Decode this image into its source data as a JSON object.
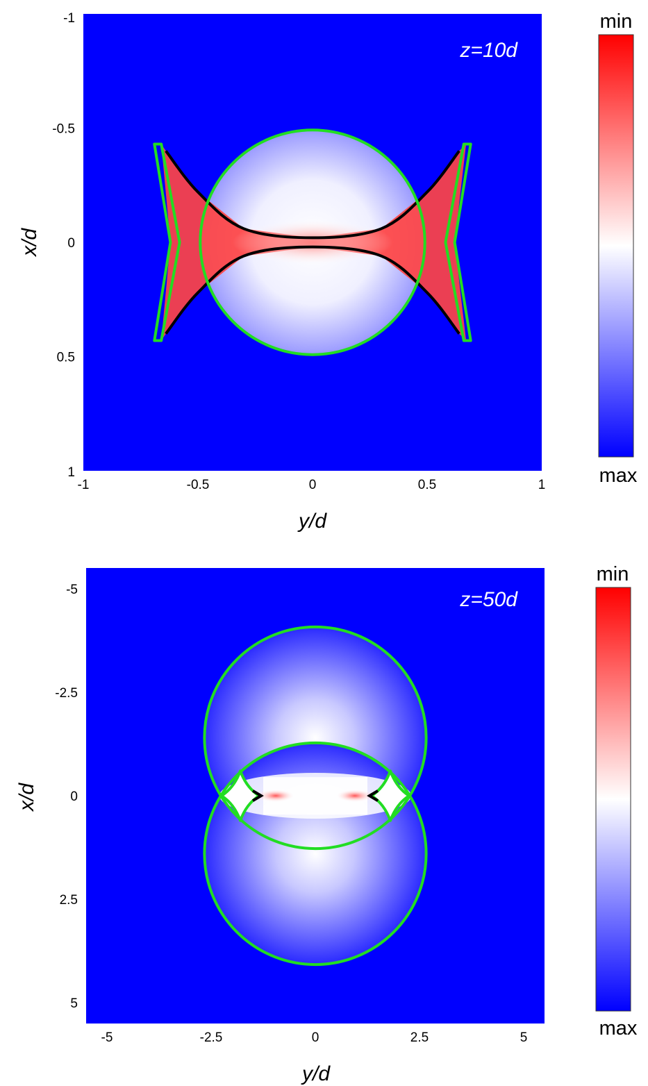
{
  "chart_data": [
    {
      "type": "heatmap",
      "annotation": "z=10d",
      "xlabel": "y/d",
      "ylabel": "x/d",
      "xlim": [
        -1,
        1
      ],
      "ylim": [
        -1,
        1
      ],
      "y_axis_direction": "reversed",
      "xticks": [
        "-1",
        "-0.5",
        "0",
        "0.5",
        "1"
      ],
      "yticks": [
        "-1",
        "-0.5",
        "0",
        "0.5",
        "1"
      ],
      "colorbar": {
        "top_label": "min",
        "bottom_label": "max",
        "colors": [
          "#ff0000",
          "#ffffff",
          "#0000ff"
        ]
      },
      "background_color": "#0000ff",
      "circles": [
        {
          "name": "boundary circle",
          "center": [
            0,
            0
          ],
          "radius": 0.49,
          "color": "#22dd22"
        }
      ],
      "caustic": {
        "color": "#000000",
        "upper_curve": [
          [
            -0.64,
            -0.4
          ],
          [
            -0.5,
            -0.22
          ],
          [
            -0.3,
            -0.06
          ],
          [
            0,
            -0.02
          ],
          [
            0.3,
            -0.06
          ],
          [
            0.5,
            -0.22
          ],
          [
            0.64,
            -0.4
          ]
        ],
        "lower_curve": [
          [
            -0.64,
            0.4
          ],
          [
            -0.5,
            0.22
          ],
          [
            -0.3,
            0.06
          ],
          [
            0,
            0.02
          ],
          [
            0.3,
            0.06
          ],
          [
            0.5,
            0.22
          ],
          [
            0.64,
            0.4
          ]
        ]
      },
      "side_cusps": {
        "color": "#22dd22",
        "left": [
          [
            -0.66,
            -0.43
          ],
          [
            -0.58,
            0
          ],
          [
            -0.66,
            0.43
          ],
          [
            -0.69,
            0.43
          ],
          [
            -0.62,
            0
          ],
          [
            -0.69,
            -0.43
          ]
        ],
        "right": [
          [
            0.66,
            -0.43
          ],
          [
            0.58,
            0
          ],
          [
            0.66,
            0.43
          ],
          [
            0.69,
            0.43
          ],
          [
            0.62,
            0
          ],
          [
            0.69,
            -0.43
          ]
        ]
      }
    },
    {
      "type": "heatmap",
      "annotation": "z=50d",
      "xlabel": "y/d",
      "ylabel": "x/d",
      "xlim": [
        -5.5,
        5.5
      ],
      "ylim": [
        -5.5,
        5.5
      ],
      "y_axis_direction": "reversed",
      "xticks": [
        "-5",
        "-2.5",
        "0",
        "2.5",
        "5"
      ],
      "yticks": [
        "-5",
        "-2.5",
        "0",
        "2.5",
        "5"
      ],
      "colorbar": {
        "top_label": "min",
        "bottom_label": "max",
        "colors": [
          "#ff0000",
          "#ffffff",
          "#0000ff"
        ]
      },
      "background_color": "#0000ff",
      "circles": [
        {
          "name": "upper circle",
          "center": [
            0,
            -1.4
          ],
          "radius": 2.66,
          "color": "#22dd22"
        },
        {
          "name": "lower circle",
          "center": [
            0,
            1.4
          ],
          "radius": 2.66,
          "color": "#22dd22"
        }
      ],
      "side_cusps": {
        "color": "#22dd22",
        "left": [
          [
            -1.8,
            -0.6
          ],
          [
            -1.35,
            0
          ],
          [
            -1.8,
            0.6
          ],
          [
            -2.25,
            0
          ]
        ],
        "right": [
          [
            1.8,
            -0.6
          ],
          [
            1.35,
            0
          ],
          [
            1.8,
            0.6
          ],
          [
            2.25,
            0
          ]
        ]
      },
      "caustic": {
        "color": "#000000",
        "left_tip": [
          -1.3,
          0
        ],
        "right_tip": [
          1.3,
          0
        ]
      }
    }
  ]
}
